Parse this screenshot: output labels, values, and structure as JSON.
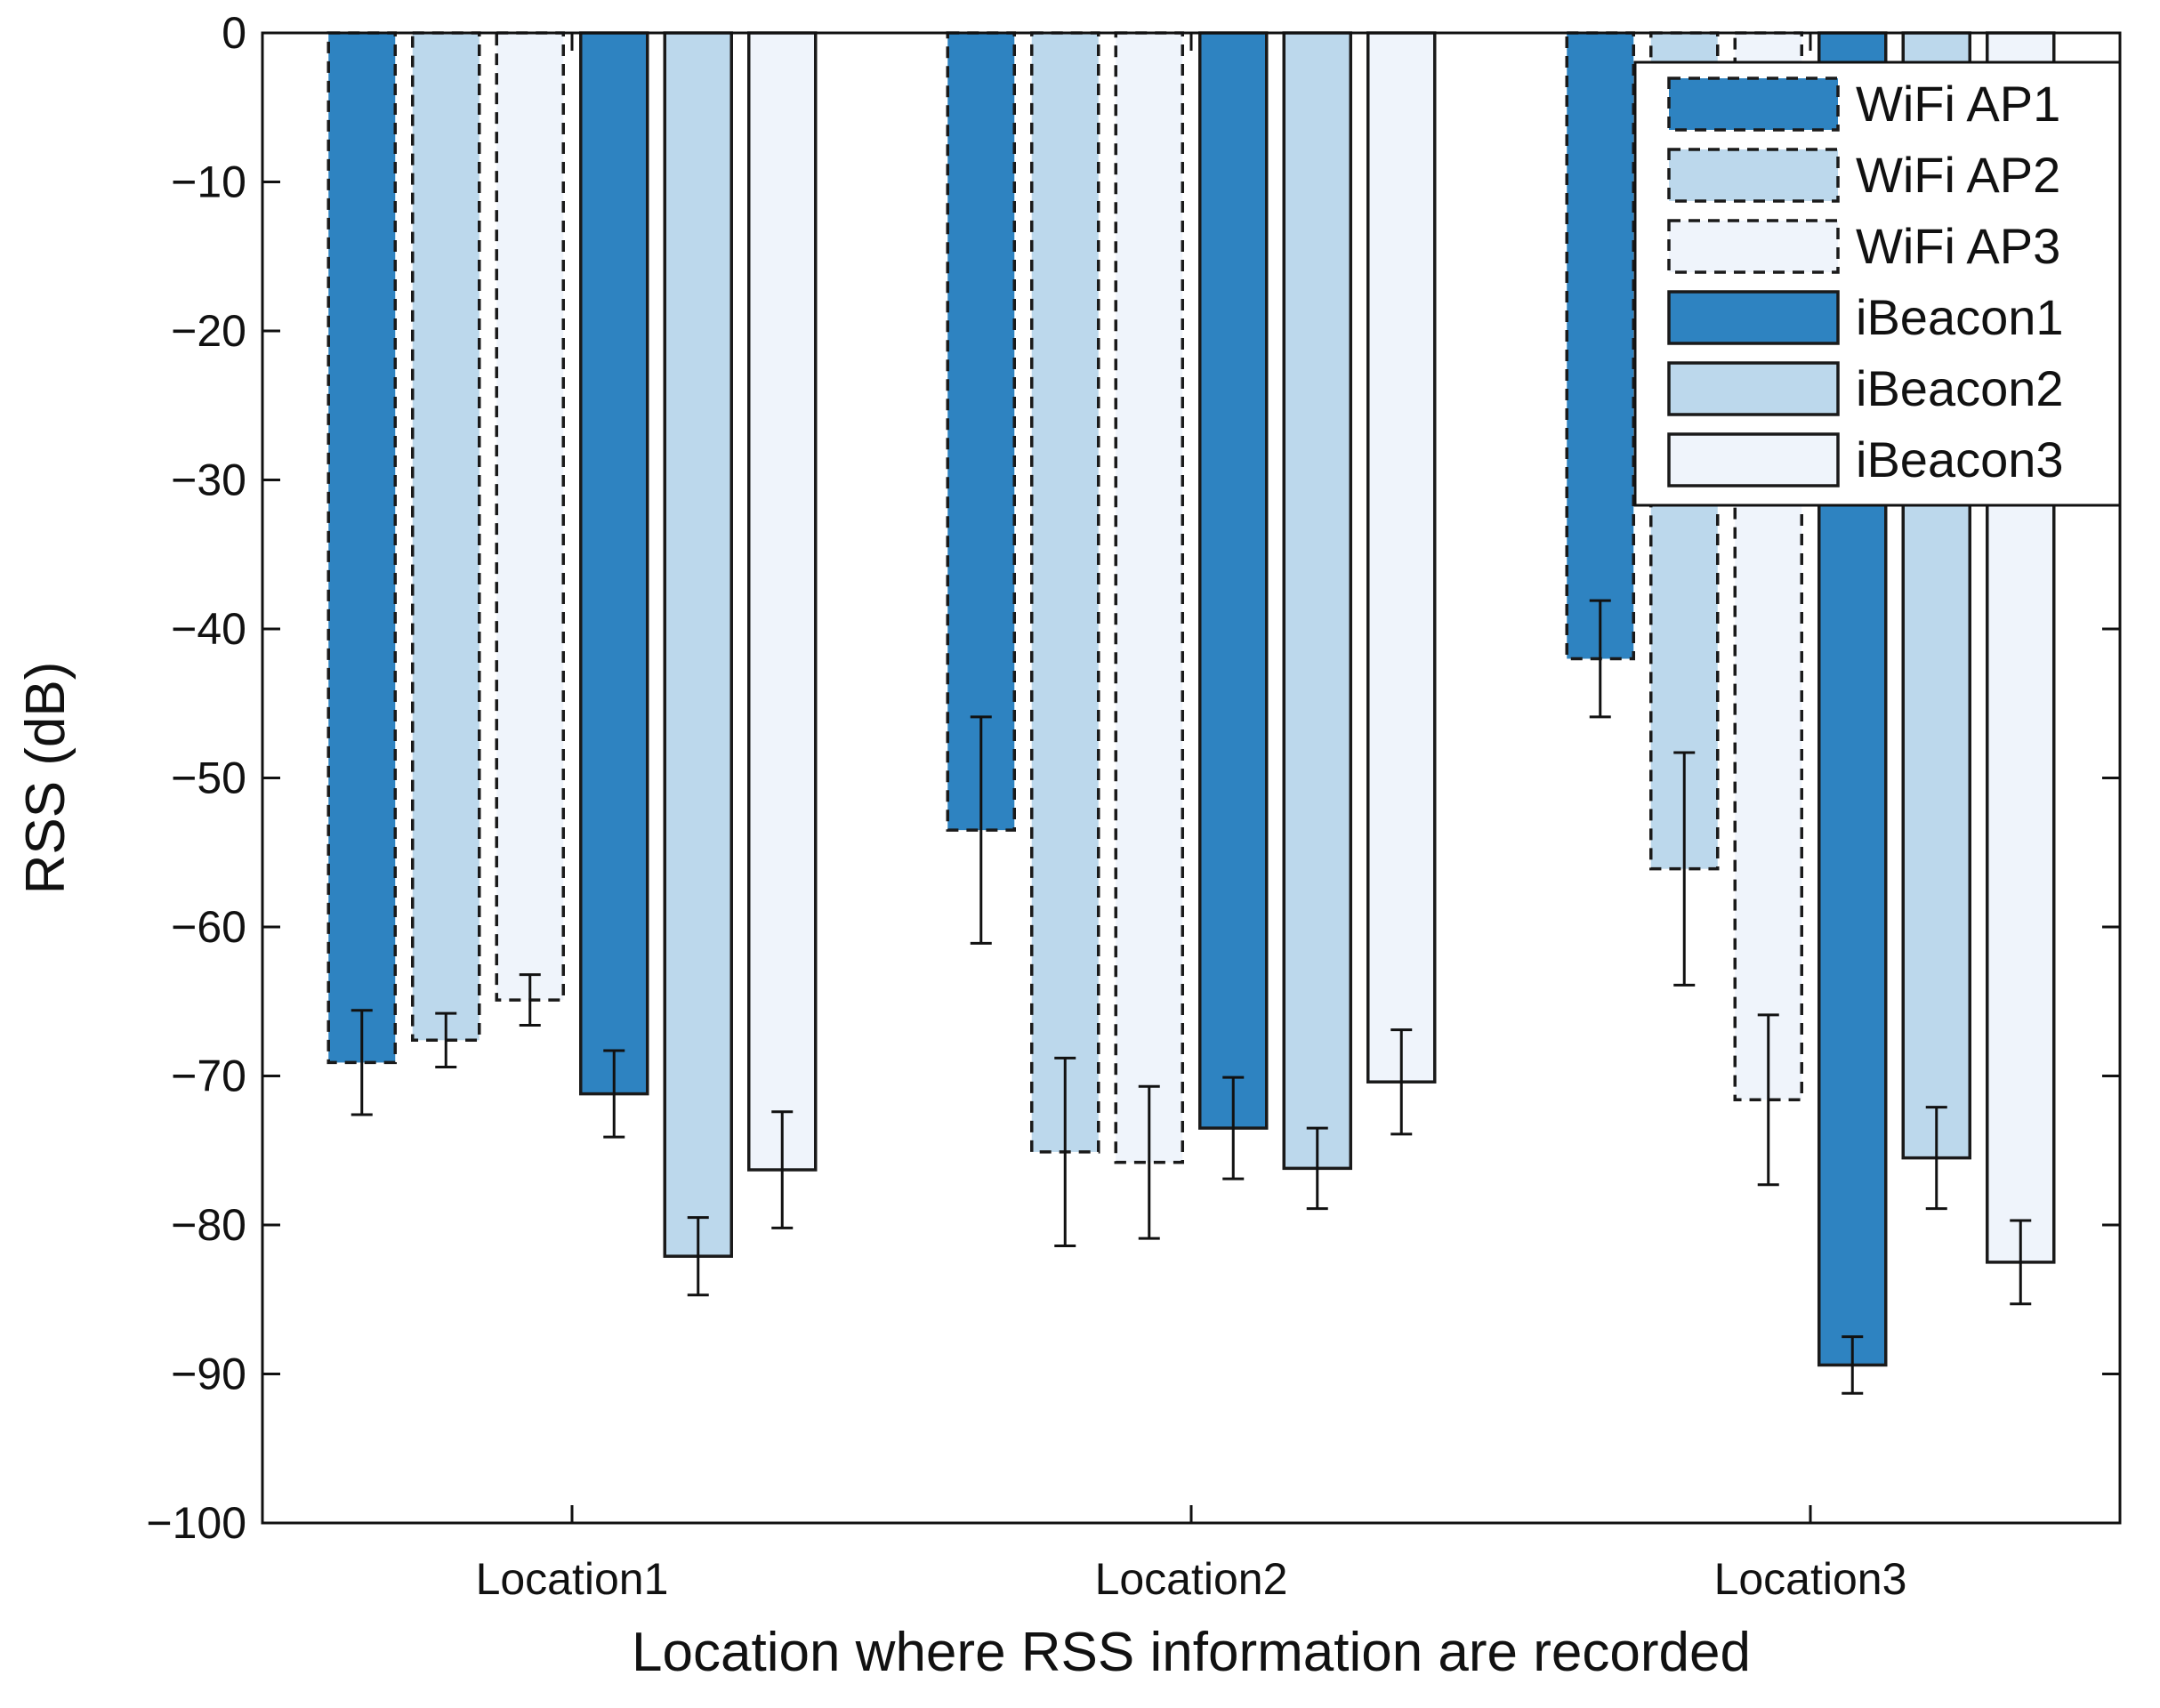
{
  "chart_data": {
    "type": "bar",
    "title": "",
    "xlabel": "Location where RSS information are recorded",
    "ylabel": "RSS (dB)",
    "ylim": [
      -100,
      0
    ],
    "yticks": [
      0,
      -10,
      -20,
      -30,
      -40,
      -50,
      -60,
      -70,
      -80,
      -90,
      -100
    ],
    "ytick_labels": [
      "0",
      "−10",
      "−20",
      "−30",
      "−40",
      "−50",
      "−60",
      "−70",
      "−80",
      "−90",
      "−100"
    ],
    "categories": [
      "Location1",
      "Location2",
      "Location3"
    ],
    "grid": false,
    "legend_position": "top-right",
    "series": [
      {
        "name": "WiFi AP1",
        "color": "#2e83c1",
        "dashed": true,
        "values": [
          -69.1,
          -53.5,
          -42.0
        ],
        "errors": [
          3.5,
          7.6,
          3.9
        ]
      },
      {
        "name": "WiFi AP2",
        "color": "#bcd8ec",
        "dashed": true,
        "values": [
          -67.6,
          -75.1,
          -56.1
        ],
        "errors": [
          1.8,
          6.3,
          7.8
        ]
      },
      {
        "name": "WiFi AP3",
        "color": "#eff4fb",
        "dashed": true,
        "values": [
          -64.9,
          -75.8,
          -71.6
        ],
        "errors": [
          1.7,
          5.1,
          5.7
        ]
      },
      {
        "name": "iBeacon1",
        "color": "#2e83c1",
        "dashed": false,
        "values": [
          -71.2,
          -73.5,
          -89.4
        ],
        "errors": [
          2.9,
          3.4,
          1.9
        ]
      },
      {
        "name": "iBeacon2",
        "color": "#bcd8ec",
        "dashed": false,
        "values": [
          -82.1,
          -76.2,
          -75.5
        ],
        "errors": [
          2.6,
          2.7,
          3.4
        ]
      },
      {
        "name": "iBeacon3",
        "color": "#eff4fb",
        "dashed": false,
        "values": [
          -76.3,
          -70.4,
          -82.5
        ],
        "errors": [
          3.9,
          3.5,
          2.8
        ]
      }
    ]
  }
}
